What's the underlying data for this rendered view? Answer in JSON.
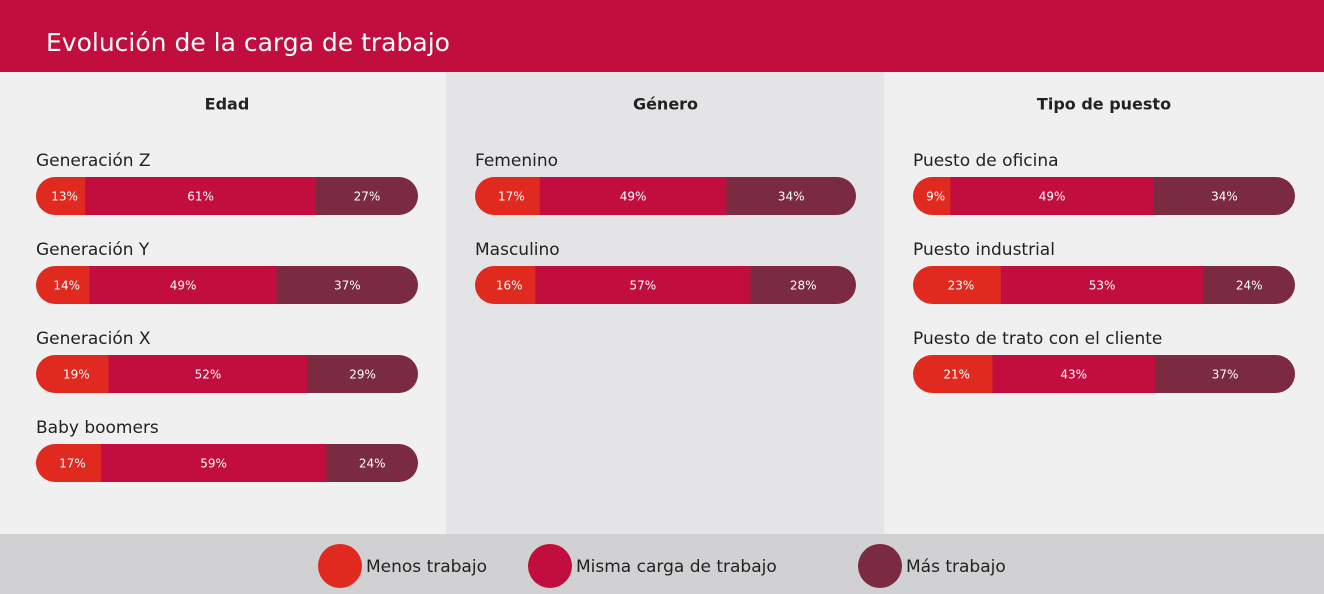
{
  "title": "Evolución de la carga de trabajo",
  "legend": [
    {
      "name": "Menos trabajo",
      "color": "#e0291f"
    },
    {
      "name": "Misma carga de trabajo",
      "color": "#c20e3f"
    },
    {
      "name": "Más trabajo",
      "color": "#7b2b41"
    }
  ],
  "chart_data": [
    {
      "type": "bar",
      "stacked": true,
      "title": "Edad",
      "categories": [
        "Generación Z",
        "Generación Y",
        "Generación X",
        "Baby boomers"
      ],
      "series": [
        {
          "values": [
            13,
            14,
            19,
            17
          ],
          "value_labels": [
            "13%",
            "14%",
            "19%",
            "17%"
          ]
        },
        {
          "values": [
            61,
            49,
            52,
            59
          ],
          "value_labels": [
            "61%",
            "49%",
            "52%",
            "59%"
          ]
        },
        {
          "values": [
            27,
            37,
            29,
            24
          ],
          "value_labels": [
            "27%",
            "37%",
            "29%",
            "24%"
          ]
        }
      ]
    },
    {
      "type": "bar",
      "stacked": true,
      "title": "Género",
      "categories": [
        "Femenino",
        "Masculino"
      ],
      "series": [
        {
          "values": [
            17,
            16
          ],
          "value_labels": [
            "17%",
            "16%"
          ]
        },
        {
          "values": [
            49,
            57
          ],
          "value_labels": [
            "49%",
            "57%"
          ]
        },
        {
          "values": [
            34,
            28
          ],
          "value_labels": [
            "34%",
            "28%"
          ]
        }
      ]
    },
    {
      "type": "bar",
      "stacked": true,
      "title": "Tipo de puesto",
      "categories": [
        "Puesto de oficina",
        "Puesto industrial",
        "Puesto de trato con el cliente"
      ],
      "series": [
        {
          "values": [
            9,
            23,
            21
          ],
          "value_labels": [
            "9%",
            "23%",
            "21%"
          ]
        },
        {
          "values": [
            49,
            53,
            43
          ],
          "value_labels": [
            "49%",
            "53%",
            "43%"
          ]
        },
        {
          "values": [
            34,
            24,
            37
          ],
          "value_labels": [
            "34%",
            "24%",
            "37%"
          ]
        }
      ]
    }
  ]
}
